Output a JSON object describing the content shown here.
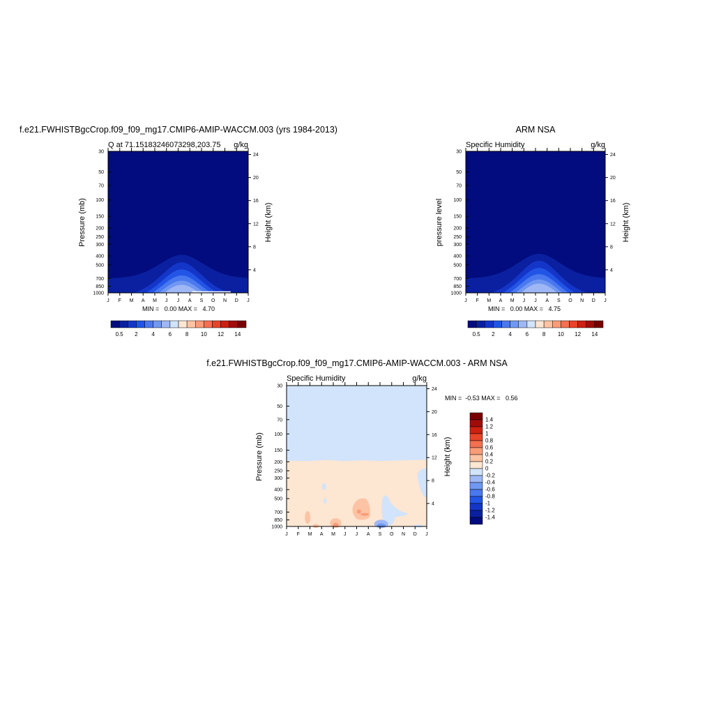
{
  "chart_data": [
    {
      "type": "heatmap",
      "title": "f.e21.FWHISTBgcCrop.f09_f09_mg17.CMIP6-AMIP-WACCM.003 (yrs 1984-2013)",
      "left_string": "Q at 71.15183246073298,203.75",
      "right_string": "g/kg",
      "ylabel": "Pressure (mb)",
      "ylabel_right": "Height (km)",
      "x_ticks": [
        "J",
        "F",
        "M",
        "A",
        "M",
        "J",
        "J",
        "A",
        "S",
        "O",
        "N",
        "D",
        "J"
      ],
      "y_ticks": [
        "30",
        "50",
        "70",
        "100",
        "150",
        "200",
        "250",
        "300",
        "400",
        "500",
        "700",
        "850",
        "1000"
      ],
      "y_ticks_right": [
        "24",
        "20",
        "16",
        "12",
        "8",
        "4"
      ],
      "stats": "MIN =   0.00 MAX =   4.70",
      "colorbar_labels": [
        "0.5",
        "2",
        "4",
        "6",
        "8",
        "10",
        "12",
        "14"
      ],
      "values_by_month_pressure_envelope": {
        "note_units": "g/kg",
        "min": 0.0,
        "max": 4.7
      }
    },
    {
      "type": "heatmap",
      "title": "ARM NSA",
      "left_string": "Specific Humidity",
      "right_string": "g/kg",
      "ylabel": "pressure level",
      "ylabel_right": "Height (km)",
      "x_ticks": [
        "J",
        "F",
        "M",
        "A",
        "M",
        "J",
        "J",
        "A",
        "S",
        "O",
        "N",
        "D",
        "J"
      ],
      "y_ticks": [
        "30",
        "50",
        "70",
        "100",
        "150",
        "200",
        "250",
        "300",
        "400",
        "500",
        "700",
        "850",
        "1000"
      ],
      "y_ticks_right": [
        "24",
        "20",
        "16",
        "12",
        "8",
        "4"
      ],
      "stats": "MIN =   0.00 MAX =   4.75",
      "colorbar_labels": [
        "0.5",
        "2",
        "4",
        "6",
        "8",
        "10",
        "12",
        "14"
      ],
      "values_by_month_pressure_envelope": {
        "note_units": "g/kg",
        "min": 0.0,
        "max": 4.75
      }
    },
    {
      "type": "heatmap",
      "title": "f.e21.FWHISTBgcCrop.f09_f09_mg17.CMIP6-AMIP-WACCM.003 - ARM NSA",
      "left_string": "Specific Humidity",
      "right_string": "g/kg",
      "ylabel": "Pressure (mb)",
      "ylabel_right": "Height (km)",
      "x_ticks": [
        "J",
        "F",
        "M",
        "A",
        "M",
        "J",
        "J",
        "A",
        "S",
        "O",
        "N",
        "D",
        "J"
      ],
      "y_ticks": [
        "30",
        "50",
        "70",
        "100",
        "150",
        "200",
        "250",
        "300",
        "400",
        "500",
        "700",
        "850",
        "1000"
      ],
      "y_ticks_right": [
        "24",
        "20",
        "16",
        "12",
        "8",
        "4"
      ],
      "stats": "MIN =  -0.53 MAX =   0.56",
      "colorbar_labels": [
        "1.4",
        "1.2",
        "1",
        "0.8",
        "0.6",
        "0.4",
        "0.2",
        "0",
        "-0.2",
        "-0.4",
        "-0.6",
        "-0.8",
        "-1",
        "-1.2",
        "-1.4"
      ],
      "min": -0.53,
      "max": 0.56
    }
  ],
  "colors": {
    "seq": [
      "#020c7e",
      "#0a20a0",
      "#1436c8",
      "#2255e6",
      "#4a78ef",
      "#7098f2",
      "#9fb8f5",
      "#d2e4fb",
      "#fde6d2",
      "#fcc4a4",
      "#fa9c78",
      "#f47050",
      "#e84428",
      "#cc2010",
      "#a00c0a",
      "#780000"
    ],
    "div": [
      "#780000",
      "#a00c0a",
      "#cc2010",
      "#e84428",
      "#f47050",
      "#fa9c78",
      "#fcc4a4",
      "#fde6d2",
      "#d2e4fb",
      "#9fb8f5",
      "#7098f2",
      "#4a78ef",
      "#2255e6",
      "#1436c8",
      "#0a20a0",
      "#020c7e"
    ],
    "model_levels": [
      {
        "name": "0-0.5",
        "color": "#020c7e"
      },
      {
        "name": "0.5-1",
        "color": "#0a20a0"
      },
      {
        "name": "1-1.5",
        "color": "#1436c8"
      },
      {
        "name": "1.5-2",
        "color": "#2255e6"
      },
      {
        "name": "2-3",
        "color": "#4a78ef"
      },
      {
        "name": "3-4",
        "color": "#7098f2"
      },
      {
        "name": "4-5",
        "color": "#9fb8f5"
      }
    ]
  }
}
